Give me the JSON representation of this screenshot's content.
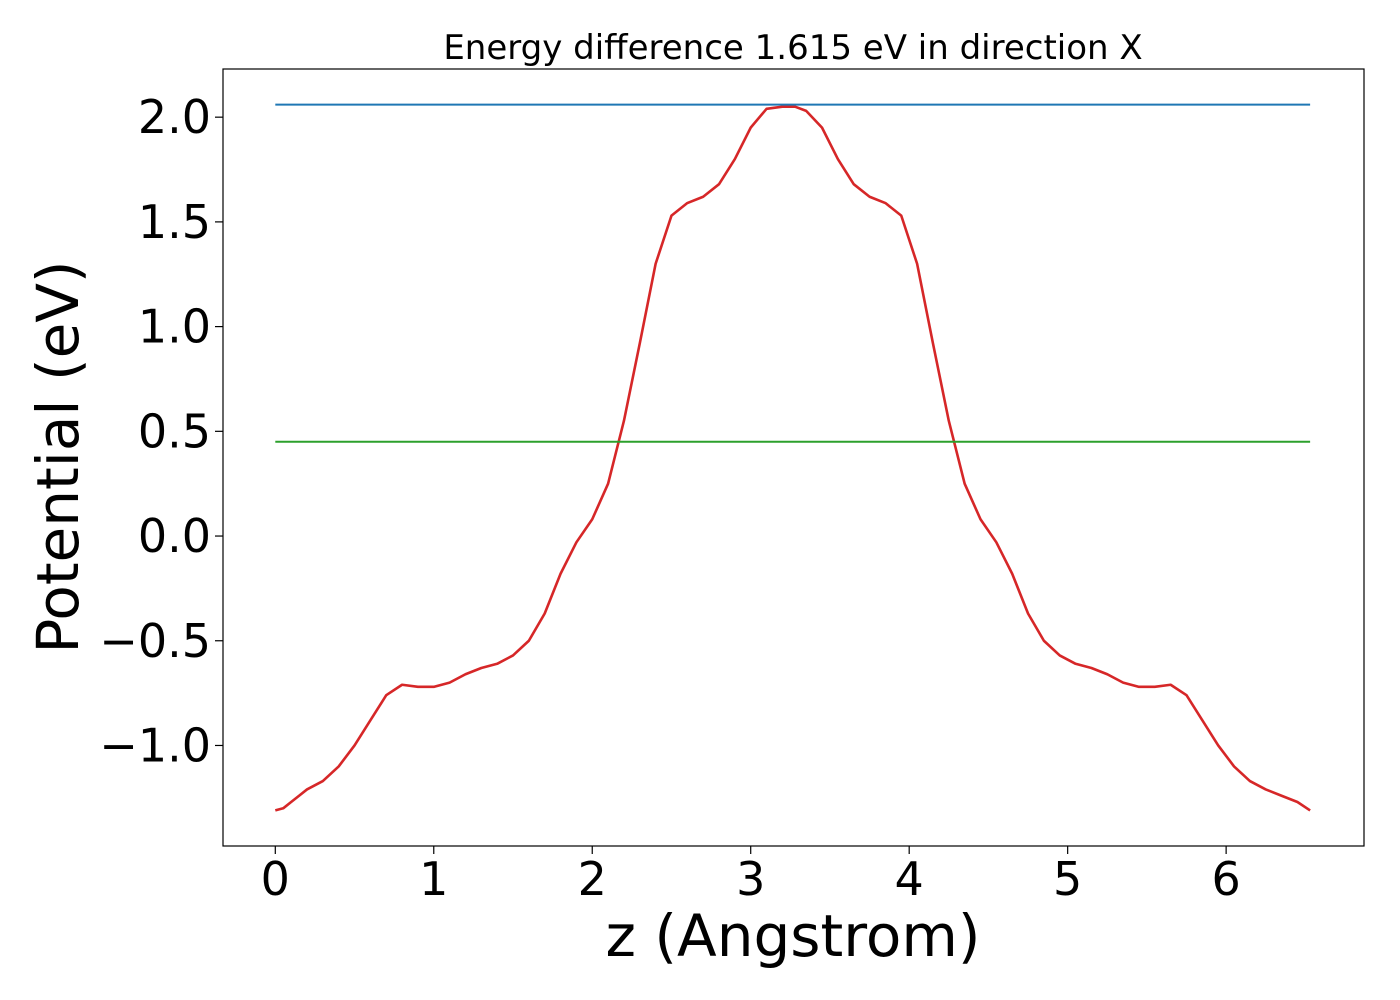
{
  "chart_data": {
    "type": "line",
    "title": "Energy difference 1.615 eV in direction X",
    "xlabel": "z (Angstrom)",
    "ylabel": "Potential (eV)",
    "xlim": [
      -0.33,
      6.87
    ],
    "ylim": [
      -1.48,
      2.23
    ],
    "xticks": [
      0,
      1,
      2,
      3,
      4,
      5,
      6
    ],
    "yticks": [
      -1.0,
      -0.5,
      0.0,
      0.5,
      1.0,
      1.5,
      2.0
    ],
    "ytick_labels": [
      "−1.0",
      "−0.5",
      "0.0",
      "0.5",
      "1.0",
      "1.5",
      "2.0"
    ],
    "grid": false,
    "legend": "none",
    "series": [
      {
        "color": "#d62728",
        "x": [
          0.0,
          0.05,
          0.1,
          0.15,
          0.2,
          0.3,
          0.4,
          0.5,
          0.6,
          0.7,
          0.8,
          0.9,
          1.0,
          1.1,
          1.2,
          1.3,
          1.4,
          1.5,
          1.6,
          1.7,
          1.8,
          1.9,
          2.0,
          2.1,
          2.2,
          2.3,
          2.4,
          2.5,
          2.6,
          2.7,
          2.8,
          2.9,
          3.0,
          3.1,
          3.2,
          3.28,
          3.35,
          3.45,
          3.55,
          3.65,
          3.75,
          3.85,
          3.95,
          4.05,
          4.15,
          4.25,
          4.35,
          4.45,
          4.55,
          4.65,
          4.75,
          4.85,
          4.95,
          5.05,
          5.15,
          5.25,
          5.35,
          5.45,
          5.55,
          5.65,
          5.75,
          5.85,
          5.95,
          6.05,
          6.15,
          6.25,
          6.35,
          6.45,
          6.53
        ],
        "y": [
          -1.31,
          -1.3,
          -1.27,
          -1.24,
          -1.21,
          -1.17,
          -1.1,
          -1.0,
          -0.88,
          -0.76,
          -0.71,
          -0.72,
          -0.72,
          -0.7,
          -0.66,
          -0.63,
          -0.61,
          -0.57,
          -0.5,
          -0.37,
          -0.18,
          -0.03,
          0.08,
          0.25,
          0.55,
          0.92,
          1.3,
          1.53,
          1.59,
          1.62,
          1.68,
          1.8,
          1.95,
          2.04,
          2.05,
          2.05,
          2.03,
          1.95,
          1.8,
          1.68,
          1.62,
          1.59,
          1.53,
          1.3,
          0.92,
          0.55,
          0.25,
          0.08,
          -0.03,
          -0.18,
          -0.37,
          -0.5,
          -0.57,
          -0.61,
          -0.63,
          -0.66,
          -0.7,
          -0.72,
          -0.72,
          -0.71,
          -0.76,
          -0.88,
          -1.0,
          -1.1,
          -1.17,
          -1.21,
          -1.24,
          -1.27,
          -1.31
        ]
      },
      {
        "color": "#1f77b4",
        "x": [
          0.0,
          6.53
        ],
        "y": [
          2.06,
          2.06
        ]
      },
      {
        "color": "#2ca02c",
        "x": [
          0.0,
          6.53
        ],
        "y": [
          0.45,
          0.45
        ]
      }
    ]
  }
}
